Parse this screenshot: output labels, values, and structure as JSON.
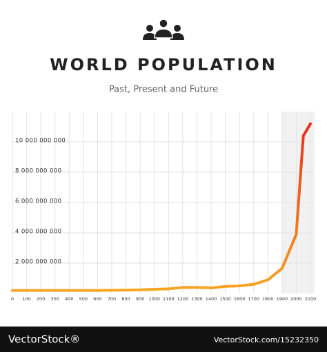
{
  "chart_data": {
    "type": "line",
    "title": "WORLD POPULATION",
    "subtitle": "Past, Present and Future",
    "x": [
      0,
      100,
      200,
      300,
      400,
      500,
      600,
      700,
      800,
      900,
      1000,
      1100,
      1200,
      1300,
      1400,
      1500,
      1600,
      1700,
      1800,
      1900,
      2000,
      2050,
      2100
    ],
    "values": [
      200000000,
      200000000,
      200000000,
      200000000,
      200000000,
      200000000,
      200000000,
      210000000,
      220000000,
      240000000,
      270000000,
      300000000,
      400000000,
      400000000,
      370000000,
      460000000,
      500000000,
      600000000,
      900000000,
      1650000000,
      3900000000,
      10400000000,
      11200000000
    ],
    "gradient": [
      "#f7a823",
      "#e8251d"
    ],
    "xlim": [
      0,
      2100
    ],
    "xticks": [
      0,
      100,
      200,
      300,
      400,
      500,
      600,
      700,
      800,
      900,
      1000,
      1100,
      1200,
      1300,
      1400,
      1500,
      1600,
      1700,
      1800,
      1900,
      2000,
      2100
    ],
    "ylim": [
      0,
      12000000000
    ],
    "yticks": [
      {
        "value": 2000000000,
        "label": "2 000 000 000"
      },
      {
        "value": 4000000000,
        "label": "4 000 000 000"
      },
      {
        "value": 6000000000,
        "label": "6 000 000 000"
      },
      {
        "value": 8000000000,
        "label": "8 000 000 000"
      },
      {
        "value": 10000000000,
        "label": "10 000 000 000"
      }
    ],
    "shade": [
      1900,
      2100
    ],
    "grid": true
  },
  "watermark": {
    "brand": "VectorStock®",
    "id": "VectorStock.com/15232350"
  }
}
